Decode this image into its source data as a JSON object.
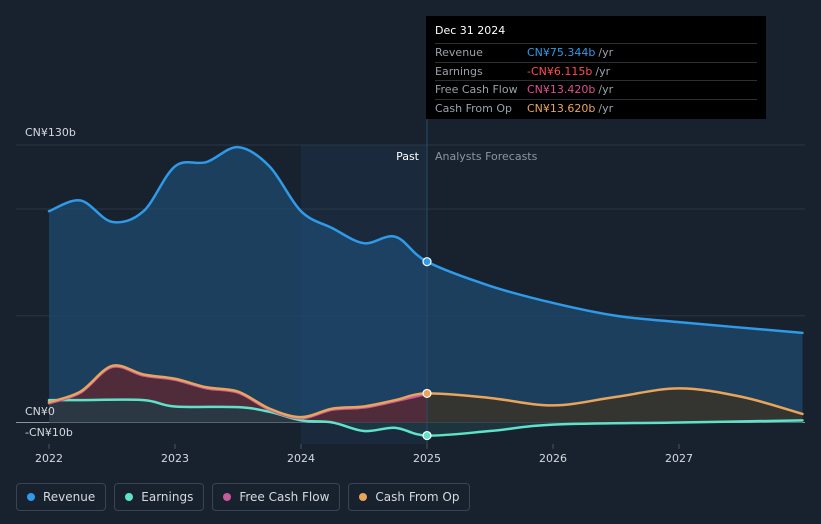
{
  "chart_data": {
    "type": "line",
    "x_ticks": [
      "2022",
      "2023",
      "2024",
      "2025",
      "2026",
      "2027"
    ],
    "y_labels": {
      "top": "CN¥130b",
      "zero": "CN¥0",
      "bottom": "-CN¥10b"
    },
    "ylim": [
      -10,
      130
    ],
    "x_range": [
      2021.75,
      2027.98
    ],
    "divider_x": 2025.0,
    "highlight_start": 2024.0,
    "past_label": "Past",
    "forecast_label": "Analysts Forecasts",
    "series": [
      {
        "name": "Revenue",
        "color": "#2f9ae8",
        "fill": "#1d4a6f",
        "points": [
          [
            2022.0,
            99
          ],
          [
            2022.25,
            104
          ],
          [
            2022.5,
            94
          ],
          [
            2022.75,
            99
          ],
          [
            2023.0,
            120
          ],
          [
            2023.25,
            122
          ],
          [
            2023.5,
            129
          ],
          [
            2023.75,
            120
          ],
          [
            2024.0,
            99
          ],
          [
            2024.25,
            91
          ],
          [
            2024.5,
            84
          ],
          [
            2024.75,
            87
          ],
          [
            2025.0,
            75.344
          ],
          [
            2025.5,
            64
          ],
          [
            2026.0,
            56
          ],
          [
            2026.5,
            50
          ],
          [
            2027.0,
            47
          ],
          [
            2027.98,
            42
          ]
        ]
      },
      {
        "name": "Earnings",
        "color": "#5ee3c9",
        "fill": "#1f3b45",
        "points": [
          [
            2022.0,
            10.5
          ],
          [
            2022.25,
            10.5
          ],
          [
            2022.75,
            10.5
          ],
          [
            2023.0,
            7.5
          ],
          [
            2023.5,
            7.2
          ],
          [
            2023.75,
            5
          ],
          [
            2024.0,
            1
          ],
          [
            2024.25,
            0
          ],
          [
            2024.5,
            -4
          ],
          [
            2024.75,
            -2.5
          ],
          [
            2025.0,
            -6.115
          ],
          [
            2025.5,
            -4
          ],
          [
            2026.0,
            -1
          ],
          [
            2027.0,
            0
          ],
          [
            2027.98,
            1
          ]
        ]
      },
      {
        "name": "Free Cash Flow",
        "color": "#c75b9b",
        "fill": "#5a2a3f",
        "points": [
          [
            2022.0,
            9
          ],
          [
            2022.25,
            14
          ],
          [
            2022.5,
            26
          ],
          [
            2022.75,
            22
          ],
          [
            2023.0,
            20
          ],
          [
            2023.25,
            16
          ],
          [
            2023.5,
            14
          ],
          [
            2023.75,
            6
          ],
          [
            2024.0,
            2
          ],
          [
            2024.25,
            6
          ],
          [
            2024.5,
            7
          ],
          [
            2024.75,
            10
          ],
          [
            2025.0,
            13.42
          ]
        ]
      },
      {
        "name": "Cash From Op",
        "color": "#e9a55c",
        "fill": "#3c3323",
        "points": [
          [
            2022.0,
            9.5
          ],
          [
            2022.25,
            14.5
          ],
          [
            2022.5,
            26.5
          ],
          [
            2022.75,
            22.5
          ],
          [
            2023.0,
            20.5
          ],
          [
            2023.25,
            16.5
          ],
          [
            2023.5,
            14.5
          ],
          [
            2023.75,
            6.5
          ],
          [
            2024.0,
            2.5
          ],
          [
            2024.25,
            6.5
          ],
          [
            2024.5,
            7.5
          ],
          [
            2024.75,
            10.5
          ],
          [
            2025.0,
            13.62
          ],
          [
            2025.5,
            11.5
          ],
          [
            2026.0,
            8
          ],
          [
            2026.5,
            12
          ],
          [
            2027.0,
            16
          ],
          [
            2027.5,
            12
          ],
          [
            2027.98,
            4
          ]
        ]
      }
    ]
  },
  "tooltip": {
    "date": "Dec 31 2024",
    "rows": [
      {
        "label": "Revenue",
        "value": "CN¥75.344b",
        "unit": "/yr",
        "color": "#2f9ae8"
      },
      {
        "label": "Earnings",
        "value": "-CN¥6.115b",
        "unit": "/yr",
        "color": "#ff4d4d"
      },
      {
        "label": "Free Cash Flow",
        "value": "CN¥13.420b",
        "unit": "/yr",
        "color": "#e0508f"
      },
      {
        "label": "Cash From Op",
        "value": "CN¥13.620b",
        "unit": "/yr",
        "color": "#e9a55c"
      }
    ]
  },
  "legend": [
    {
      "label": "Revenue",
      "color": "#2f9ae8"
    },
    {
      "label": "Earnings",
      "color": "#5ee3c9"
    },
    {
      "label": "Free Cash Flow",
      "color": "#c75b9b"
    },
    {
      "label": "Cash From Op",
      "color": "#e9a55c"
    }
  ]
}
